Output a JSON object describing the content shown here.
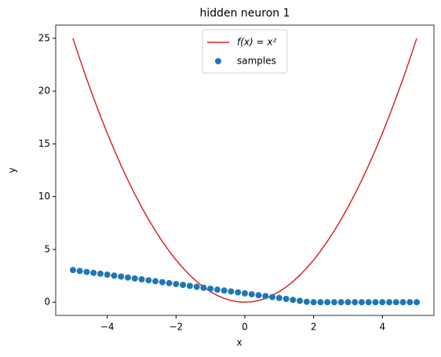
{
  "chart_data": {
    "type": "line",
    "title": "hidden neuron 1",
    "x_label": "x",
    "y_label": "y",
    "x": [
      -5,
      -4.8,
      -4.6,
      -4.4,
      -4.2,
      -4,
      -3.8,
      -3.6,
      -3.4,
      -3.2,
      -3,
      -2.8,
      -2.6,
      -2.4,
      -2.2,
      -2,
      -1.8,
      -1.6,
      -1.4,
      -1.2,
      -1,
      -0.8,
      -0.6,
      -0.4,
      -0.2,
      0,
      0.2,
      0.4,
      0.6,
      0.8,
      1,
      1.2,
      1.4,
      1.6,
      1.8,
      2,
      2.2,
      2.4,
      2.6,
      2.8,
      3,
      3.2,
      3.4,
      3.6,
      3.8,
      4,
      4.2,
      4.4,
      4.6,
      4.8,
      5
    ],
    "series": [
      {
        "name": "f(x) = x²",
        "type": "line",
        "color": "#d62728",
        "values": [
          25,
          23.04,
          21.16,
          19.36,
          17.64,
          16,
          14.44,
          12.96,
          11.56,
          10.24,
          9,
          7.84,
          6.76,
          5.76,
          4.84,
          4,
          3.24,
          2.56,
          1.96,
          1.44,
          1,
          0.64,
          0.36,
          0.16,
          0.04,
          0,
          0.04,
          0.16,
          0.36,
          0.64,
          1,
          1.44,
          1.96,
          2.56,
          3.24,
          4,
          4.84,
          5.76,
          6.76,
          7.84,
          9,
          10.24,
          11.56,
          12.96,
          14.44,
          16,
          17.64,
          19.36,
          21.16,
          23.04,
          25
        ]
      },
      {
        "name": "samples",
        "type": "scatter",
        "color": "#1f77b4",
        "values": [
          3.05,
          2.96,
          2.87,
          2.78,
          2.7,
          2.61,
          2.52,
          2.43,
          2.34,
          2.25,
          2.17,
          2.08,
          1.99,
          1.9,
          1.81,
          1.72,
          1.64,
          1.55,
          1.46,
          1.37,
          1.28,
          1.19,
          1.11,
          1.02,
          0.93,
          0.84,
          0.75,
          0.66,
          0.58,
          0.49,
          0.4,
          0.31,
          0.22,
          0.13,
          0.04,
          0,
          0,
          0,
          0,
          0,
          0,
          0,
          0,
          0,
          0,
          0,
          0,
          0,
          0,
          0,
          0
        ]
      }
    ],
    "xlim": [
      -5.5,
      5.5
    ],
    "ylim": [
      -1.25,
      26.25
    ],
    "xticks": [
      {
        "value": -4,
        "label": "−4"
      },
      {
        "value": -2,
        "label": "−2"
      },
      0,
      2,
      4
    ],
    "yticks": [
      0,
      5,
      10,
      15,
      20,
      25
    ],
    "legend": "upper center"
  }
}
